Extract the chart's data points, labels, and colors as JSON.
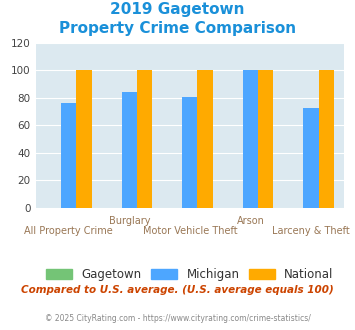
{
  "title_line1": "2019 Gagetown",
  "title_line2": "Property Crime Comparison",
  "title_color": "#1a90d9",
  "categories": [
    "All Property Crime",
    "Burglary",
    "Motor Vehicle Theft",
    "Arson",
    "Larceny & Theft"
  ],
  "series": {
    "Gagetown": [
      0,
      0,
      0,
      0,
      0
    ],
    "Michigan": [
      76,
      84,
      81,
      100,
      73
    ],
    "National": [
      100,
      100,
      100,
      100,
      100
    ]
  },
  "colors": {
    "Gagetown": "#74c476",
    "Michigan": "#4da6ff",
    "National": "#ffaa00"
  },
  "ylim": [
    0,
    120
  ],
  "yticks": [
    0,
    20,
    40,
    60,
    80,
    100,
    120
  ],
  "plot_bg": "#dce9f0",
  "xlabel_color": "#997755",
  "footer_note": "Compared to U.S. average. (U.S. average equals 100)",
  "footer_note_color": "#cc4400",
  "copyright": "© 2025 CityRating.com - https://www.cityrating.com/crime-statistics/",
  "copyright_color": "#888888"
}
